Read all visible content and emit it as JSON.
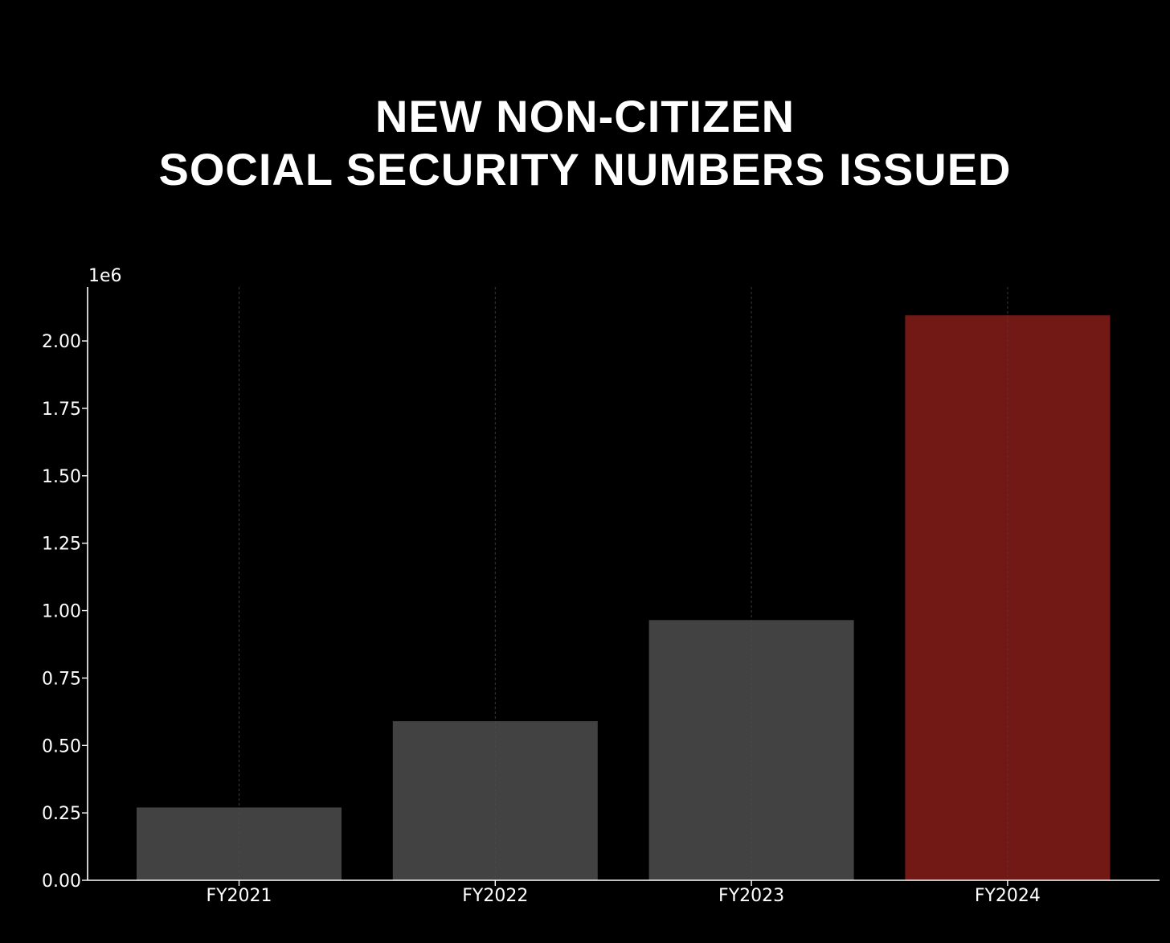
{
  "chart_data": {
    "type": "bar",
    "title_lines": [
      "NEW NON-CITIZEN",
      "SOCIAL SECURITY NUMBERS ISSUED"
    ],
    "categories": [
      "FY2021",
      "FY2022",
      "FY2023",
      "FY2024"
    ],
    "values": [
      270000,
      590000,
      965000,
      2095000
    ],
    "bar_colors": [
      "#424242",
      "#424242",
      "#424242",
      "#721915"
    ],
    "ylim": [
      0,
      2200000
    ],
    "yticks": [
      0,
      250000,
      500000,
      750000,
      1000000,
      1250000,
      1500000,
      1750000,
      2000000
    ],
    "ytick_labels": [
      "0.00",
      "0.25",
      "0.50",
      "0.75",
      "1.00",
      "1.25",
      "1.50",
      "1.75",
      "2.00"
    ],
    "y_offset_label": "1e6",
    "xlabel": "",
    "ylabel": "",
    "grid": "vertical dashed",
    "background": "#000000",
    "axis_color": "#ffffff"
  }
}
